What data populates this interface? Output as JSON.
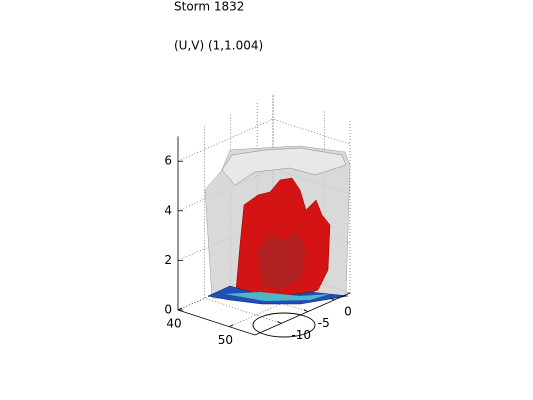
{
  "chart_data": {
    "type": "surface3d",
    "title": "Storm 1832",
    "subtitle": "(U,V) (1,1.004)",
    "xlim": [
      40,
      55
    ],
    "xticks": [
      40,
      50
    ],
    "ylim": [
      -15,
      3
    ],
    "yticks": [
      -10,
      -5,
      0
    ],
    "zlim": [
      0,
      7
    ],
    "zticks": [
      0,
      2,
      4,
      6
    ],
    "grid": true
  }
}
